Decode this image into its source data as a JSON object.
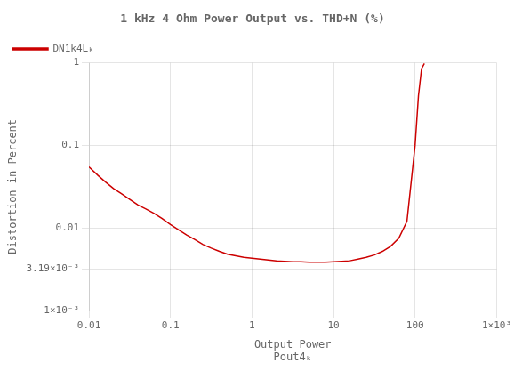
{
  "chart_data": {
    "type": "line",
    "title": "1 kHz 4 Ohm Power Output vs. THD+N (%)",
    "xlabel": "Output Power",
    "ylabel": "Distortion in Percent",
    "annotations": [
      "Pout4ₖ"
    ],
    "log": true,
    "grid": true,
    "legend": "upper left",
    "xlim": [
      0.01,
      1000
    ],
    "ylim": [
      0.001,
      1
    ],
    "xticks": [
      0.01,
      0.1,
      1,
      10,
      100,
      {
        "value": 1000,
        "label": "1×10³"
      }
    ],
    "yticks": [
      {
        "value": 0.001,
        "label": "1×10⁻³"
      },
      {
        "value": 0.00319,
        "label": "3.19×10⁻³"
      },
      0.01,
      0.1,
      1
    ],
    "x": [
      0.01,
      0.013,
      0.016,
      0.02,
      0.025,
      0.032,
      0.04,
      0.05,
      0.063,
      0.079,
      0.1,
      0.126,
      0.158,
      0.2,
      0.251,
      0.316,
      0.398,
      0.501,
      0.631,
      0.794,
      1.0,
      1.259,
      1.585,
      1.995,
      2.512,
      3.162,
      3.981,
      5.012,
      6.31,
      7.943,
      10.0,
      12.59,
      15.85,
      19.95,
      25.12,
      31.62,
      39.81,
      50.12,
      63.1,
      79.43,
      100.0,
      110.0,
      120.0,
      130.0
    ],
    "series": [
      {
        "name": "DN1k4Lₖ",
        "color": "#cc0000",
        "values": [
          0.055,
          0.043,
          0.036,
          0.03,
          0.026,
          0.022,
          0.019,
          0.017,
          0.015,
          0.013,
          0.011,
          0.0095,
          0.0082,
          0.0072,
          0.0063,
          0.0057,
          0.0052,
          0.0048,
          0.0046,
          0.0044,
          0.0043,
          0.0042,
          0.0041,
          0.004,
          0.00395,
          0.0039,
          0.00388,
          0.00385,
          0.00385,
          0.00385,
          0.0039,
          0.00395,
          0.004,
          0.0042,
          0.0044,
          0.0047,
          0.0052,
          0.006,
          0.0075,
          0.012,
          0.1,
          0.4,
          0.85,
          0.98
        ]
      }
    ]
  }
}
